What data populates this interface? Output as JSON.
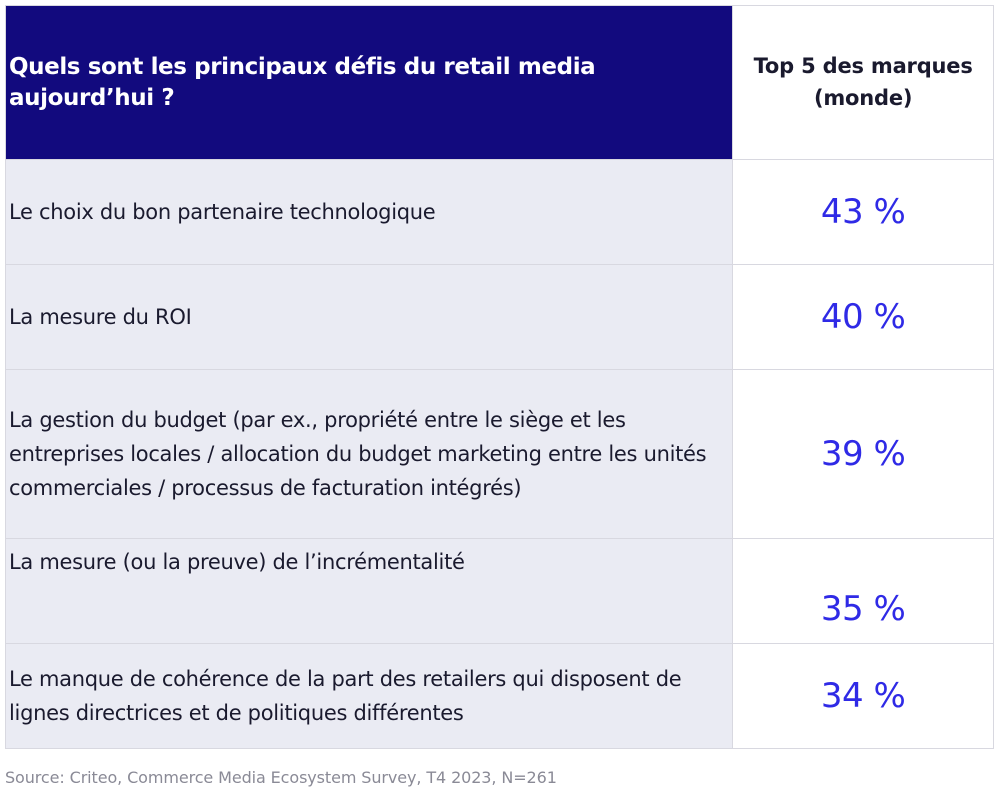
{
  "table": {
    "header": {
      "question": "Quels sont les principaux défis du retail media aujourd’hui ?",
      "column": "Top 5 des marques (monde)",
      "column_line1": "Top 5 des marques",
      "column_line2": "(monde)"
    },
    "rows": [
      {
        "label": "Le choix du bon partenaire technologique",
        "value": "43 %"
      },
      {
        "label": "La mesure du ROI",
        "value": "40 %"
      },
      {
        "label": "La gestion du budget (par ex., propriété entre le siège et les entreprises locales / allocation du budget marketing entre les unités commerciales / processus de facturation intégrés)",
        "value": "39 %"
      },
      {
        "label": "La mesure (ou la preuve) de l’incrémentalité",
        "value": "35 %"
      },
      {
        "label": "Le manque de cohérence de la part des retailers qui disposent de lignes directrices et de politiques différentes",
        "value": "34 %"
      }
    ]
  },
  "source": "Source: Criteo, Commerce Media Ecosystem Survey, T4 2023, N=261",
  "colors": {
    "header_bg": "#120a7e",
    "row_bg": "#eaebf3",
    "value_color": "#2f2ae6",
    "source_color": "#8a8a96"
  }
}
